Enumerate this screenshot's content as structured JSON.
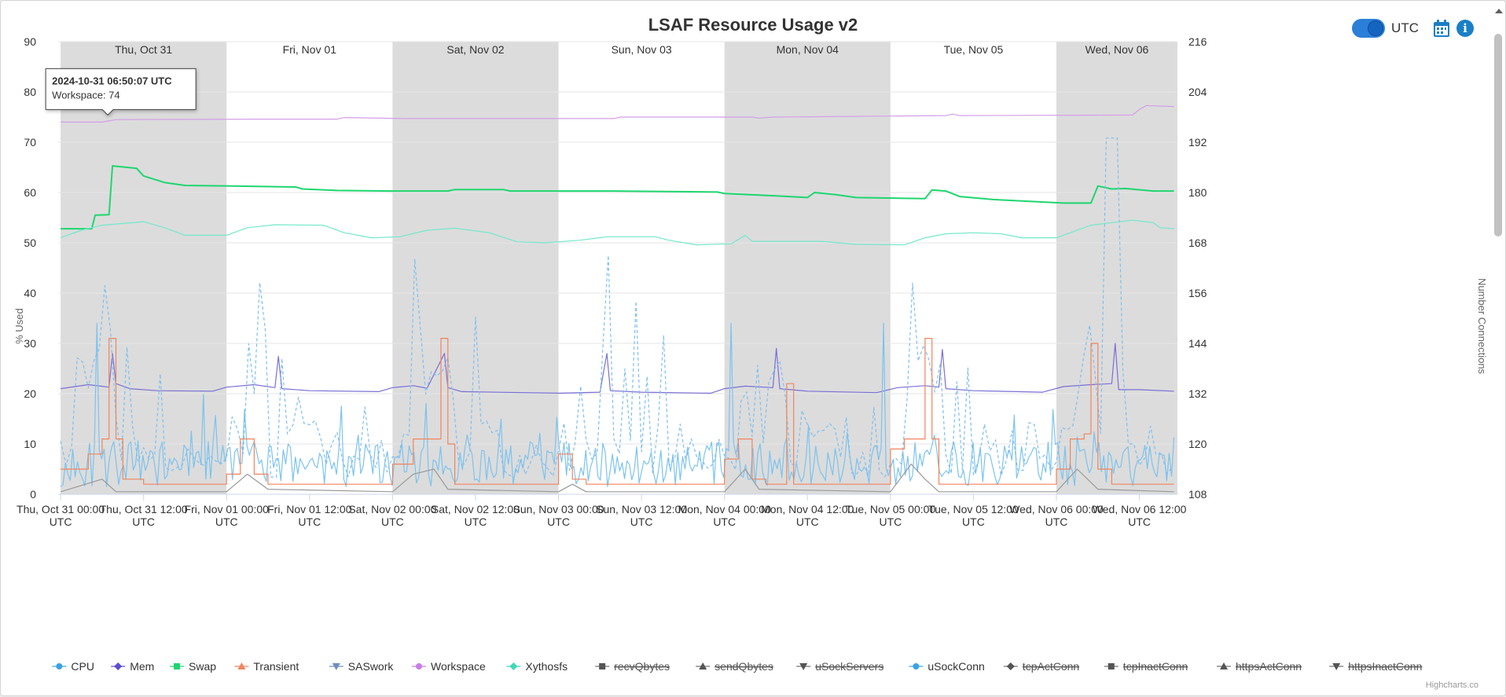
{
  "chart_data": {
    "type": "line",
    "title": "LSAF Resource Usage v2",
    "ylabel_left": "% Used",
    "ylabel_right": "Number Connections",
    "ylim_left": [
      0,
      90
    ],
    "ylim_right": [
      108,
      216
    ],
    "yticks_left": [
      0,
      10,
      20,
      30,
      40,
      50,
      60,
      70,
      80,
      90
    ],
    "yticks_right": [
      108,
      120,
      132,
      144,
      156,
      168,
      180,
      192,
      204,
      216
    ],
    "x_start": "2024-10-31 00:00 UTC",
    "x_range_hours": [
      -0.35,
      161.5
    ],
    "xticks": [
      {
        "h": 0,
        "line1": "Thu, Oct 31 00:00",
        "line2": "UTC"
      },
      {
        "h": 12,
        "line1": "Thu, Oct 31 12:00",
        "line2": "UTC"
      },
      {
        "h": 24,
        "line1": "Fri, Nov 01 00:00",
        "line2": "UTC"
      },
      {
        "h": 36,
        "line1": "Fri, Nov 01 12:00",
        "line2": "UTC"
      },
      {
        "h": 48,
        "line1": "Sat, Nov 02 00:00",
        "line2": "UTC"
      },
      {
        "h": 60,
        "line1": "Sat, Nov 02 12:00",
        "line2": "UTC"
      },
      {
        "h": 72,
        "line1": "Sun, Nov 03 00:00",
        "line2": "UTC"
      },
      {
        "h": 84,
        "line1": "Sun, Nov 03 12:00",
        "line2": "UTC"
      },
      {
        "h": 96,
        "line1": "Mon, Nov 04 00:00",
        "line2": "UTC"
      },
      {
        "h": 108,
        "line1": "Mon, Nov 04 12:00",
        "line2": "UTC"
      },
      {
        "h": 120,
        "line1": "Tue, Nov 05 00:00",
        "line2": "UTC"
      },
      {
        "h": 132,
        "line1": "Tue, Nov 05 12:00",
        "line2": "UTC"
      },
      {
        "h": 144,
        "line1": "Wed, Nov 06 00:00",
        "line2": "UTC"
      },
      {
        "h": 156,
        "line1": "Wed, Nov 06 12:00",
        "line2": "UTC"
      }
    ],
    "day_bands": [
      {
        "label": "Thu, Oct 31",
        "from": 0,
        "to": 24,
        "shaded": true
      },
      {
        "label": "Fri, Nov 01",
        "from": 24,
        "to": 48,
        "shaded": false
      },
      {
        "label": "Sat, Nov 02",
        "from": 48,
        "to": 72,
        "shaded": true
      },
      {
        "label": "Sun, Nov 03",
        "from": 72,
        "to": 96,
        "shaded": false
      },
      {
        "label": "Mon, Nov 04",
        "from": 96,
        "to": 120,
        "shaded": true
      },
      {
        "label": "Tue, Nov 05",
        "from": 120,
        "to": 144,
        "shaded": false
      },
      {
        "label": "Wed, Nov 06",
        "from": 144,
        "to": 161.5,
        "shaded": true
      }
    ],
    "series": [
      {
        "name": "Workspace",
        "color": "#d49ee8",
        "axis": "left",
        "style": "solid",
        "points": [
          [
            0,
            74
          ],
          [
            6,
            74
          ],
          [
            8,
            74.5
          ],
          [
            30,
            74.6
          ],
          [
            40,
            74.6
          ],
          [
            41,
            74.9
          ],
          [
            50,
            74.7
          ],
          [
            80,
            74.7
          ],
          [
            81,
            75
          ],
          [
            100,
            75
          ],
          [
            101,
            74.8
          ],
          [
            103,
            75
          ],
          [
            120,
            75.2
          ],
          [
            128,
            75.3
          ],
          [
            129,
            75.6
          ],
          [
            130,
            75.3
          ],
          [
            155,
            75.4
          ],
          [
            156,
            76.5
          ],
          [
            157,
            77.3
          ],
          [
            161,
            77.1
          ]
        ]
      },
      {
        "name": "Swap",
        "color": "#1ed66f",
        "axis": "left",
        "style": "solid",
        "points": [
          [
            0,
            52.8
          ],
          [
            4.5,
            52.8
          ],
          [
            5,
            55.5
          ],
          [
            7,
            55.6
          ],
          [
            7.5,
            65.3
          ],
          [
            11,
            64.8
          ],
          [
            12,
            63.3
          ],
          [
            15,
            62
          ],
          [
            18,
            61.4
          ],
          [
            25,
            61.3
          ],
          [
            34,
            61.1
          ],
          [
            35,
            60.7
          ],
          [
            40,
            60.4
          ],
          [
            48,
            60.3
          ],
          [
            56,
            60.3
          ],
          [
            57,
            60.6
          ],
          [
            64,
            60.6
          ],
          [
            65,
            60.3
          ],
          [
            80,
            60.3
          ],
          [
            95,
            60.1
          ],
          [
            96,
            59.8
          ],
          [
            104,
            59.3
          ],
          [
            108,
            59
          ],
          [
            109,
            60
          ],
          [
            112,
            59.6
          ],
          [
            115,
            59
          ],
          [
            125,
            58.8
          ],
          [
            126,
            60.5
          ],
          [
            128,
            60.3
          ],
          [
            130,
            59.2
          ],
          [
            135,
            58.6
          ],
          [
            145,
            57.9
          ],
          [
            149,
            57.9
          ],
          [
            150,
            61.3
          ],
          [
            152,
            60.7
          ],
          [
            154,
            60.8
          ],
          [
            158,
            60.3
          ],
          [
            161,
            60.3
          ]
        ]
      },
      {
        "name": "Xythosfs",
        "color": "#73e8cc",
        "axis": "left",
        "style": "solid",
        "points": [
          [
            0,
            51
          ],
          [
            3,
            52.5
          ],
          [
            6,
            53.5
          ],
          [
            12,
            54.2
          ],
          [
            15,
            53
          ],
          [
            18,
            51.5
          ],
          [
            24,
            51.5
          ],
          [
            27,
            53
          ],
          [
            31,
            53.6
          ],
          [
            38,
            53.5
          ],
          [
            41,
            52
          ],
          [
            45,
            51
          ],
          [
            49,
            51.2
          ],
          [
            53,
            52.5
          ],
          [
            57,
            52.9
          ],
          [
            62,
            52
          ],
          [
            66,
            50.2
          ],
          [
            70,
            50
          ],
          [
            75,
            50.5
          ],
          [
            79,
            51.2
          ],
          [
            86,
            51.2
          ],
          [
            88,
            50.5
          ],
          [
            92,
            49.6
          ],
          [
            97,
            49.8
          ],
          [
            99,
            51.5
          ],
          [
            100,
            50.3
          ],
          [
            110,
            50.3
          ],
          [
            115,
            49.7
          ],
          [
            122,
            49.6
          ],
          [
            125,
            51
          ],
          [
            128,
            51.8
          ],
          [
            132,
            52
          ],
          [
            136,
            51.8
          ],
          [
            139,
            51
          ],
          [
            144,
            51
          ],
          [
            146,
            52
          ],
          [
            149,
            53.5
          ],
          [
            155,
            54.5
          ],
          [
            158,
            54
          ],
          [
            159,
            53
          ],
          [
            161,
            52.8
          ]
        ]
      },
      {
        "name": "Mem",
        "color": "#7b6fd6",
        "axis": "left",
        "style": "solid",
        "points": [
          [
            0,
            21
          ],
          [
            4,
            21.8
          ],
          [
            7,
            21.3
          ],
          [
            7.5,
            28
          ],
          [
            8,
            22
          ],
          [
            10,
            21
          ],
          [
            14,
            20.6
          ],
          [
            22,
            20.5
          ],
          [
            24,
            21.3
          ],
          [
            28,
            21.8
          ],
          [
            31,
            21.2
          ],
          [
            31.5,
            27.4
          ],
          [
            32,
            21
          ],
          [
            36,
            20.6
          ],
          [
            46,
            20.4
          ],
          [
            48,
            21.2
          ],
          [
            51,
            21.6
          ],
          [
            53,
            21.1
          ],
          [
            55.5,
            28
          ],
          [
            56,
            21.2
          ],
          [
            58,
            20.4
          ],
          [
            72,
            20.1
          ],
          [
            78,
            20.3
          ],
          [
            79,
            28
          ],
          [
            79.5,
            20.6
          ],
          [
            84,
            20.3
          ],
          [
            94,
            20.1
          ],
          [
            96,
            21
          ],
          [
            99,
            21.5
          ],
          [
            103,
            21.2
          ],
          [
            103.5,
            29
          ],
          [
            104,
            21
          ],
          [
            108,
            20.5
          ],
          [
            118,
            20.2
          ],
          [
            121,
            21.2
          ],
          [
            125,
            21.6
          ],
          [
            127,
            21.3
          ],
          [
            127.5,
            28.8
          ],
          [
            128,
            21
          ],
          [
            132,
            20.6
          ],
          [
            142,
            20.3
          ],
          [
            145,
            21.4
          ],
          [
            149,
            21.8
          ],
          [
            152,
            22
          ],
          [
            152.5,
            30
          ],
          [
            153,
            20.8
          ],
          [
            156,
            20.8
          ],
          [
            161,
            20.5
          ]
        ]
      },
      {
        "name": "CPU",
        "color": "#7cc3ee",
        "axis": "left",
        "style": "spiky",
        "seed": 11,
        "base": 1.5,
        "amp": 9,
        "peak": 34,
        "points": [
          [
            0,
            0
          ],
          [
            161,
            0
          ]
        ]
      },
      {
        "name": "uSockConn",
        "color": "#7fbef0",
        "axis": "right",
        "style": "dashed-spiky",
        "seed": 7,
        "points": [
          [
            0,
            132
          ],
          [
            161,
            132
          ]
        ]
      },
      {
        "name": "Transient",
        "color": "#f0845d",
        "axis": "left",
        "style": "steps",
        "seed": 3,
        "points": [
          [
            0,
            5
          ],
          [
            4,
            8
          ],
          [
            6,
            11
          ],
          [
            7,
            31
          ],
          [
            8,
            11
          ],
          [
            9,
            3
          ],
          [
            12,
            2
          ],
          [
            24,
            4
          ],
          [
            26,
            11
          ],
          [
            28,
            4
          ],
          [
            30,
            2
          ],
          [
            48,
            6
          ],
          [
            51,
            11
          ],
          [
            54,
            11
          ],
          [
            55,
            31
          ],
          [
            56,
            10
          ],
          [
            57,
            2
          ],
          [
            72,
            8
          ],
          [
            74,
            3
          ],
          [
            76,
            2
          ],
          [
            96,
            7
          ],
          [
            98,
            11
          ],
          [
            100,
            3
          ],
          [
            102,
            2
          ],
          [
            104,
            2
          ],
          [
            105,
            22
          ],
          [
            106,
            2
          ],
          [
            120,
            9
          ],
          [
            122,
            11
          ],
          [
            124,
            11
          ],
          [
            125,
            31
          ],
          [
            126,
            11
          ],
          [
            127,
            2
          ],
          [
            144,
            5
          ],
          [
            146,
            11
          ],
          [
            148,
            12
          ],
          [
            149,
            30
          ],
          [
            150,
            5
          ],
          [
            152,
            2
          ],
          [
            161,
            2
          ]
        ]
      },
      {
        "name": "SASwork",
        "color": "#999999",
        "axis": "left",
        "style": "solid",
        "points": [
          [
            0,
            0.5
          ],
          [
            6,
            3
          ],
          [
            8,
            0.5
          ],
          [
            24,
            0.5
          ],
          [
            27,
            4
          ],
          [
            30,
            1
          ],
          [
            48,
            0.5
          ],
          [
            51,
            4
          ],
          [
            54,
            5
          ],
          [
            56,
            1
          ],
          [
            72,
            0.5
          ],
          [
            74,
            2
          ],
          [
            76,
            0.5
          ],
          [
            96,
            0.5
          ],
          [
            99,
            5
          ],
          [
            101,
            1
          ],
          [
            120,
            0.5
          ],
          [
            123,
            6
          ],
          [
            125,
            3
          ],
          [
            127,
            0.5
          ],
          [
            144,
            0.5
          ],
          [
            147,
            5
          ],
          [
            150,
            1
          ],
          [
            161,
            0.5
          ]
        ]
      }
    ],
    "legend": [
      {
        "name": "CPU",
        "symbol": "circle",
        "color": "#3aa2e6",
        "enabled": true
      },
      {
        "name": "Mem",
        "symbol": "diamond",
        "color": "#5b4fcf",
        "enabled": true
      },
      {
        "name": "Swap",
        "symbol": "square",
        "color": "#1ed66f",
        "enabled": true
      },
      {
        "name": "Transient",
        "symbol": "triangle",
        "color": "#f0845d",
        "enabled": true
      },
      {
        "name": "SASwork",
        "symbol": "triangle-down",
        "color": "#6f8ec2",
        "enabled": true
      },
      {
        "name": "Workspace",
        "symbol": "circle",
        "color": "#c77ee6",
        "enabled": true
      },
      {
        "name": "Xythosfs",
        "symbol": "diamond",
        "color": "#3fd9b6",
        "enabled": true
      },
      {
        "name": "recvQbytes",
        "symbol": "square",
        "color": "#444444",
        "enabled": false
      },
      {
        "name": "sendQbytes",
        "symbol": "triangle",
        "color": "#444444",
        "enabled": false
      },
      {
        "name": "uSockServers",
        "symbol": "triangle-down",
        "color": "#444444",
        "enabled": false
      },
      {
        "name": "uSockConn",
        "symbol": "circle",
        "color": "#3aa2e6",
        "enabled": true
      },
      {
        "name": "tcpActConn",
        "symbol": "diamond",
        "color": "#444444",
        "enabled": false
      },
      {
        "name": "tcpInactConn",
        "symbol": "square",
        "color": "#444444",
        "enabled": false
      },
      {
        "name": "httpsActConn",
        "symbol": "triangle",
        "color": "#444444",
        "enabled": false
      },
      {
        "name": "httpsInactConn",
        "symbol": "triangle-down",
        "color": "#444444",
        "enabled": false
      }
    ],
    "tooltip": {
      "title": "2024-10-31 06:50:07 UTC",
      "body": "Workspace: 74",
      "x_hours": 6.83,
      "y": 74
    }
  },
  "controls": {
    "utc_label": "UTC",
    "utc_enabled": true
  },
  "credits": "Highcharts.co"
}
